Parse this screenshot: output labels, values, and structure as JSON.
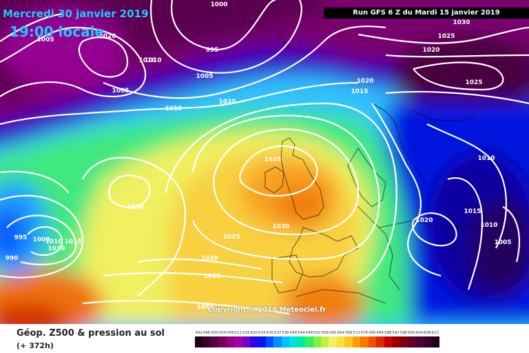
{
  "header": {
    "date": "Mercredi 30 janvier 2019",
    "time": "19:00 locale",
    "run": "Run GFS 6 Z du Mardi 15 janvier 2019"
  },
  "copyright": "Copyright © 2019 Meteociel.fr",
  "legend": {
    "title": "Géop. Z500 & pression au sol",
    "subtitle": "(+ 372h)",
    "scale": [
      {
        "v": "492",
        "c": "#1a0010"
      },
      {
        "v": "496",
        "c": "#3a0028"
      },
      {
        "v": "500",
        "c": "#5a0040"
      },
      {
        "v": "504",
        "c": "#7a0060"
      },
      {
        "v": "508",
        "c": "#940082"
      },
      {
        "v": "512",
        "c": "#a000a8"
      },
      {
        "v": "516",
        "c": "#7a00c8"
      },
      {
        "v": "520",
        "c": "#3000e0"
      },
      {
        "v": "524",
        "c": "#0018f0"
      },
      {
        "v": "528",
        "c": "#0050ff"
      },
      {
        "v": "532",
        "c": "#0090ff"
      },
      {
        "v": "536",
        "c": "#00c0ff"
      },
      {
        "v": "540",
        "c": "#00e0e0"
      },
      {
        "v": "544",
        "c": "#00e8a0"
      },
      {
        "v": "548",
        "c": "#30f060"
      },
      {
        "v": "552",
        "c": "#80f040"
      },
      {
        "v": "556",
        "c": "#c0f040"
      },
      {
        "v": "560",
        "c": "#f0f060"
      },
      {
        "v": "564",
        "c": "#f8e040"
      },
      {
        "v": "568",
        "c": "#f8c820"
      },
      {
        "v": "572",
        "c": "#f8a000"
      },
      {
        "v": "576",
        "c": "#f87800"
      },
      {
        "v": "580",
        "c": "#f05000"
      },
      {
        "v": "584",
        "c": "#e02800"
      },
      {
        "v": "588",
        "c": "#c80000"
      },
      {
        "v": "592",
        "c": "#a00000"
      },
      {
        "v": "596",
        "c": "#800010"
      },
      {
        "v": "600",
        "c": "#600020"
      },
      {
        "v": "604",
        "c": "#500030"
      },
      {
        "v": "608",
        "c": "#380028"
      },
      {
        "v": "612",
        "c": "#200018"
      }
    ]
  },
  "isobar_labels": [
    "1000",
    "1005",
    "1020",
    "1010",
    "995",
    "1005",
    "1005",
    "1015",
    "1020",
    "1030",
    "1025",
    "1020",
    "1020",
    "1025",
    "1015",
    "1035",
    "1030",
    "1030",
    "1025",
    "1020",
    "1015",
    "1010",
    "1005",
    "1015",
    "1020",
    "1010",
    "1010",
    "995",
    "1000",
    "1010",
    "1010",
    "990",
    "1015",
    "1000"
  ]
}
